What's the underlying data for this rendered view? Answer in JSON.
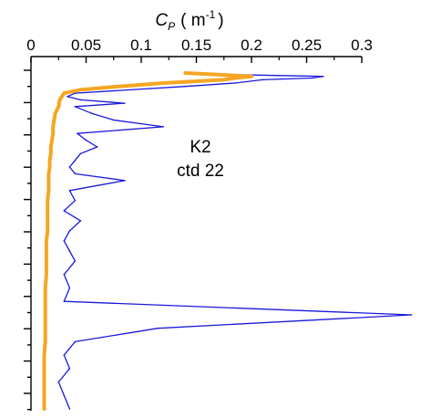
{
  "chart_data": {
    "type": "line",
    "title": "",
    "xlabel": {
      "symbol": "C",
      "subscript": "P",
      "unit_open": "( m",
      "unit_exp": "-1",
      "unit_close": ")"
    },
    "ylabel": "",
    "x_axis_position": "top",
    "xlim": [
      0,
      0.3
    ],
    "x_ticks": [
      0,
      0.05,
      0.1,
      0.15,
      0.2,
      0.25,
      0.3
    ],
    "x_tick_labels": [
      "0",
      "0.05",
      "0.1",
      "0.15",
      "0.2",
      "0.25",
      "0.3"
    ],
    "y_axis": {
      "direction": "depth, increasing downward",
      "tick_labels_shown": false,
      "ylim": [
        0,
        100
      ]
    },
    "grid": false,
    "legend": "none",
    "annotation_lines": [
      "K2",
      "ctd 22"
    ],
    "colors": {
      "raw": "#1a1adb",
      "smoothed": "#f5a623",
      "axis": "#000000"
    },
    "series": [
      {
        "role": "raw",
        "depth": [
          0,
          0.5,
          1,
          1.5,
          2,
          3,
          4,
          5,
          6,
          7,
          8,
          9,
          10,
          12,
          14,
          16,
          18,
          20,
          22,
          24,
          26,
          28,
          30,
          32,
          35,
          38,
          41,
          44,
          47,
          50,
          53,
          56,
          60,
          64,
          68,
          72,
          76,
          80,
          84,
          88,
          92,
          96,
          100
        ],
        "values": [
          0.15,
          0.185,
          0.265,
          0.255,
          0.21,
          0.185,
          0.14,
          0.09,
          0.04,
          0.033,
          0.045,
          0.085,
          0.04,
          0.055,
          0.075,
          0.12,
          0.042,
          0.05,
          0.06,
          0.045,
          0.04,
          0.035,
          0.04,
          0.085,
          0.035,
          0.04,
          0.03,
          0.045,
          0.035,
          0.03,
          0.035,
          0.04,
          0.03,
          0.035,
          0.03,
          0.345,
          0.115,
          0.04,
          0.03,
          0.035,
          0.025,
          0.03,
          0.035
        ]
      },
      {
        "role": "smoothed",
        "depth": [
          0,
          0.5,
          1,
          1.5,
          2,
          3,
          4,
          5,
          6,
          7,
          8,
          10,
          12,
          14,
          16,
          18,
          20,
          22,
          24,
          26,
          28,
          30,
          32,
          35,
          38,
          41,
          44,
          47,
          50,
          53,
          56,
          60,
          64,
          68,
          72,
          76,
          80,
          84,
          88,
          92,
          96,
          100
        ],
        "values": [
          0.14,
          0.17,
          0.2,
          0.185,
          0.175,
          0.12,
          0.08,
          0.045,
          0.03,
          0.028,
          0.026,
          0.025,
          0.022,
          0.021,
          0.02,
          0.02,
          0.019,
          0.018,
          0.018,
          0.017,
          0.017,
          0.016,
          0.016,
          0.016,
          0.015,
          0.015,
          0.015,
          0.015,
          0.014,
          0.014,
          0.014,
          0.014,
          0.013,
          0.013,
          0.013,
          0.013,
          0.013,
          0.012,
          0.012,
          0.012,
          0.012,
          0.012
        ]
      }
    ]
  }
}
